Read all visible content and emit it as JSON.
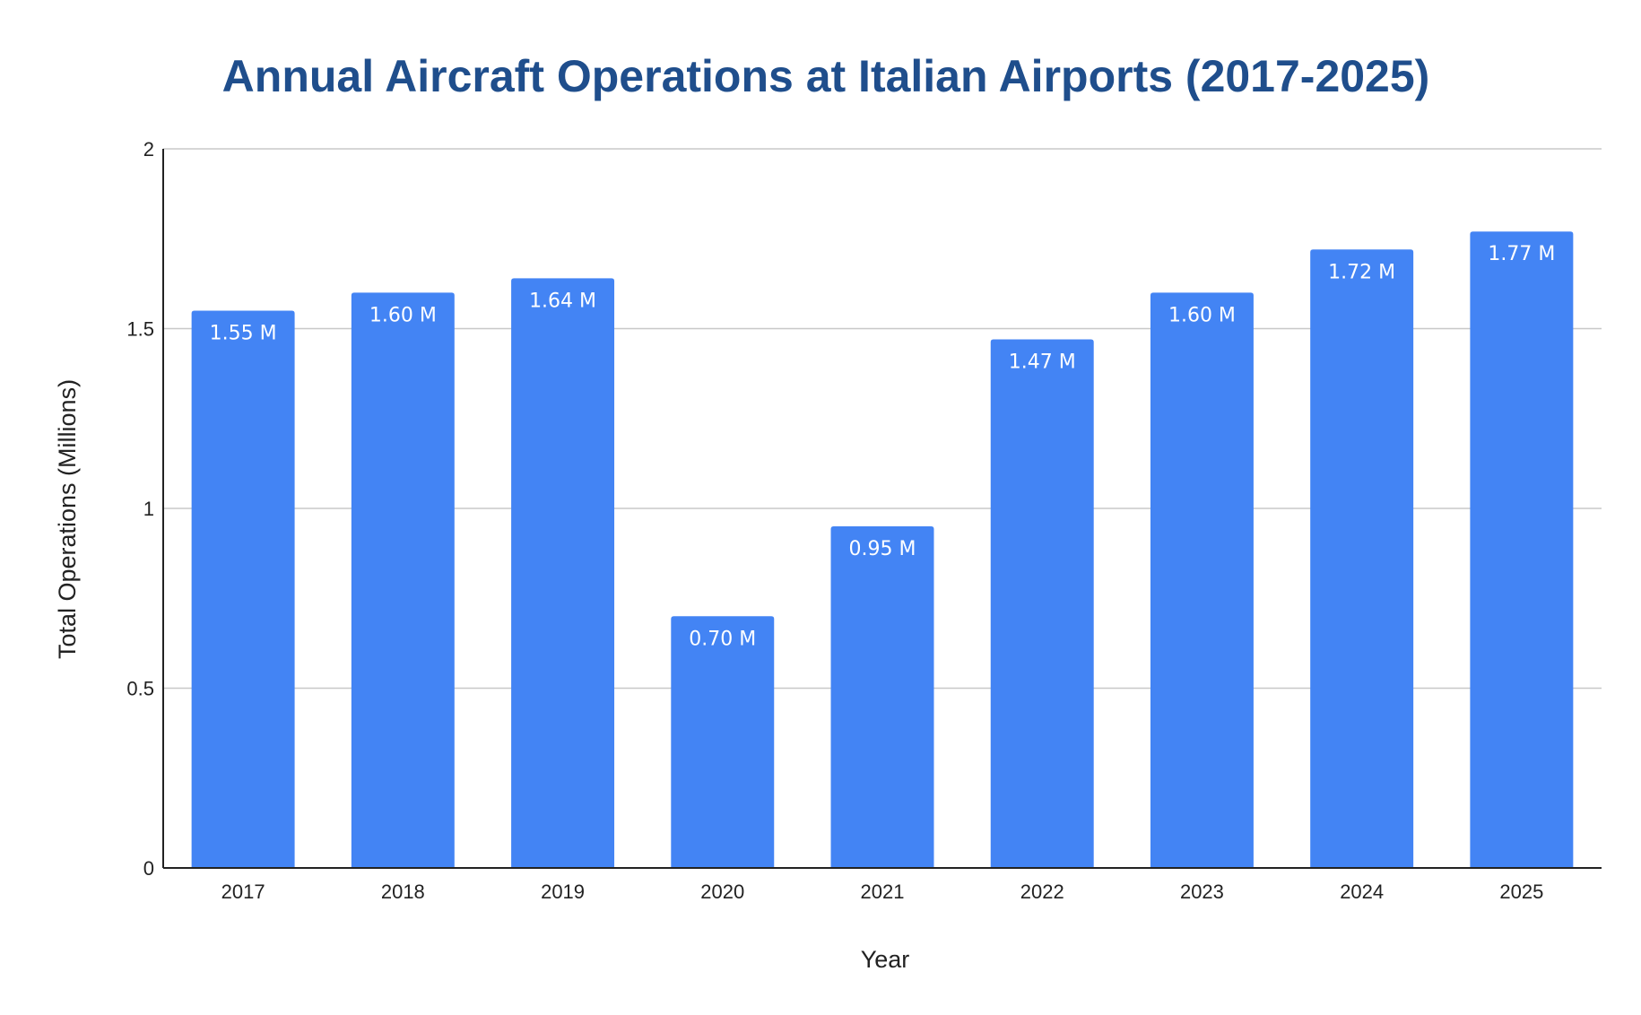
{
  "colors": {
    "bar": "#4384f4",
    "title": "#1f4e8c",
    "gridline": "#c8c8c8",
    "axis": "#222222",
    "text": "#222222",
    "label": "#ffffff"
  },
  "chart_data": {
    "type": "bar",
    "title": "Annual Aircraft Operations at Italian Airports (2017-2025)",
    "xlabel": "Year",
    "ylabel": "Total Operations (Millions)",
    "categories": [
      "2017",
      "2018",
      "2019",
      "2020",
      "2021",
      "2022",
      "2023",
      "2024",
      "2025"
    ],
    "values": [
      1.55,
      1.6,
      1.64,
      0.7,
      0.95,
      1.47,
      1.6,
      1.72,
      1.77
    ],
    "data_labels": [
      "1.55 M",
      "1.60 M",
      "1.64 M",
      "0.70 M",
      "0.95 M",
      "1.47 M",
      "1.60 M",
      "1.72 M",
      "1.77 M"
    ],
    "ylim": [
      0,
      2
    ],
    "yticks": [
      0,
      0.5,
      1,
      1.5,
      2
    ],
    "ytick_labels": [
      "0",
      "0.5",
      "1",
      "1.5",
      "2"
    ],
    "grid": true,
    "legend": "none"
  }
}
